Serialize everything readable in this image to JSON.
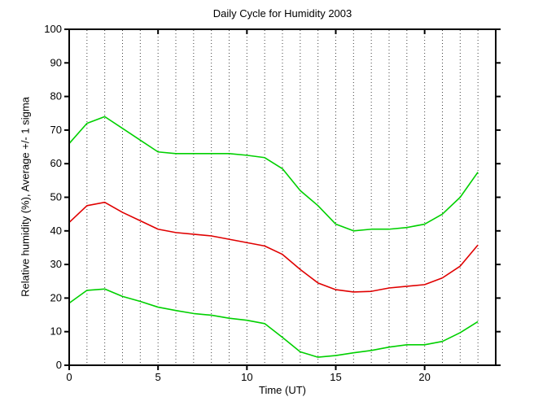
{
  "figure": {
    "title": "Daily Cycle for Humidity 2003",
    "xlabel": "Time (UT)",
    "ylabel": "Relative humidity (%), Average +/- 1 sigma"
  },
  "chart_data": {
    "type": "line",
    "title": "Daily Cycle for Humidity 2003",
    "xlabel": "Time (UT)",
    "ylabel": "Relative humidity (%), Average +/- 1 sigma",
    "x": [
      0,
      1,
      2,
      3,
      4,
      5,
      6,
      7,
      8,
      9,
      10,
      11,
      12,
      13,
      14,
      15,
      16,
      17,
      18,
      19,
      20,
      21,
      22,
      23
    ],
    "series": [
      {
        "name": "average-plus-1-sigma",
        "color": "#00d000",
        "values": [
          66,
          72,
          74,
          70.5,
          67,
          63.5,
          63,
          63,
          63,
          63,
          62.5,
          61.8,
          58.5,
          52,
          47.5,
          42,
          40,
          40.5,
          40.5,
          41,
          42,
          45,
          50,
          57.5
        ]
      },
      {
        "name": "average",
        "color": "#e00000",
        "values": [
          42.5,
          47.5,
          48.5,
          45.5,
          43,
          40.5,
          39.5,
          39,
          38.5,
          37.5,
          36.5,
          35.5,
          33,
          28.5,
          24.5,
          22.5,
          21.8,
          22,
          23,
          23.5,
          24,
          26,
          29.5,
          35.8
        ]
      },
      {
        "name": "average-minus-1-sigma",
        "color": "#00d000",
        "values": [
          18.5,
          22.3,
          22.7,
          20.5,
          19,
          17.3,
          16.3,
          15.4,
          14.9,
          14,
          13.4,
          12.4,
          8.3,
          4,
          2.4,
          2.9,
          3.7,
          4.4,
          5.4,
          6.1,
          6.1,
          7.1,
          9.7,
          13
        ]
      }
    ],
    "xlim": [
      0,
      24
    ],
    "ylim": [
      0,
      100
    ],
    "xticks": [
      0,
      5,
      10,
      15,
      20
    ],
    "yticks": [
      0,
      10,
      20,
      30,
      40,
      50,
      60,
      70,
      80,
      90,
      100
    ],
    "grid": "vertical dotted gridline at every hour 1-23",
    "gridline_color": "#404040",
    "axis_color": "#000000",
    "legend": null
  }
}
